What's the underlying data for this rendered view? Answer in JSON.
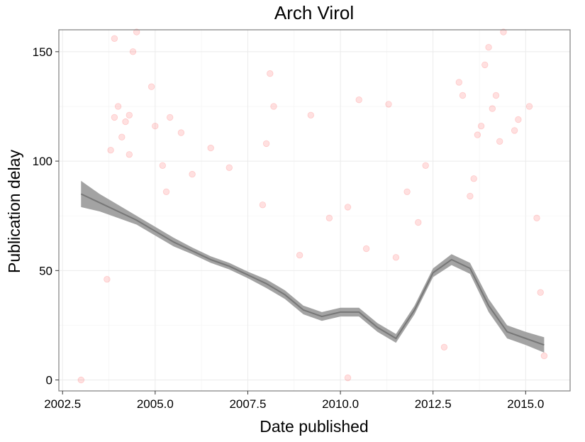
{
  "chart_data": {
    "type": "scatter",
    "title": "Arch Virol",
    "xlabel": "Date published",
    "ylabel": "Publication delay",
    "xlim": [
      2002.4,
      2016.2
    ],
    "ylim": [
      -5,
      160
    ],
    "x_ticks": [
      2002.5,
      2005.0,
      2007.5,
      2010.0,
      2012.5,
      2015.0
    ],
    "x_tick_labels": [
      "2002.5",
      "2005.0",
      "2007.5",
      "2010.0",
      "2012.5",
      "2015.0"
    ],
    "y_ticks": [
      0,
      50,
      100,
      150
    ],
    "y_tick_labels": [
      "0",
      "50",
      "100",
      "150"
    ],
    "grid": true,
    "point_color": "#ff0000",
    "point_opacity": 0.12,
    "smooth_color": "#777777",
    "series": [
      {
        "type": "scatter",
        "points": [
          [
            2003.0,
            0
          ],
          [
            2003.7,
            46
          ],
          [
            2003.8,
            105
          ],
          [
            2003.9,
            120
          ],
          [
            2003.9,
            156
          ],
          [
            2004.0,
            125
          ],
          [
            2004.1,
            111
          ],
          [
            2004.2,
            118
          ],
          [
            2004.3,
            121
          ],
          [
            2004.3,
            103
          ],
          [
            2004.4,
            150
          ],
          [
            2004.5,
            159
          ],
          [
            2004.9,
            134
          ],
          [
            2005.0,
            116
          ],
          [
            2005.2,
            98
          ],
          [
            2005.3,
            86
          ],
          [
            2005.4,
            120
          ],
          [
            2005.7,
            113
          ],
          [
            2006.0,
            94
          ],
          [
            2006.5,
            106
          ],
          [
            2007.0,
            97
          ],
          [
            2007.9,
            80
          ],
          [
            2008.0,
            108
          ],
          [
            2008.1,
            140
          ],
          [
            2008.2,
            125
          ],
          [
            2008.9,
            57
          ],
          [
            2009.2,
            121
          ],
          [
            2009.7,
            74
          ],
          [
            2010.2,
            79
          ],
          [
            2010.2,
            1
          ],
          [
            2010.5,
            128
          ],
          [
            2010.7,
            60
          ],
          [
            2011.3,
            126
          ],
          [
            2011.5,
            56
          ],
          [
            2011.8,
            86
          ],
          [
            2012.1,
            72
          ],
          [
            2012.3,
            98
          ],
          [
            2012.8,
            15
          ],
          [
            2013.2,
            136
          ],
          [
            2013.3,
            130
          ],
          [
            2013.5,
            84
          ],
          [
            2013.6,
            92
          ],
          [
            2013.7,
            112
          ],
          [
            2013.8,
            116
          ],
          [
            2013.9,
            144
          ],
          [
            2014.0,
            152
          ],
          [
            2014.1,
            124
          ],
          [
            2014.2,
            130
          ],
          [
            2014.3,
            109
          ],
          [
            2014.4,
            159
          ],
          [
            2014.7,
            114
          ],
          [
            2014.8,
            119
          ],
          [
            2015.1,
            125
          ],
          [
            2015.3,
            74
          ],
          [
            2015.4,
            40
          ],
          [
            2015.5,
            11
          ]
        ]
      },
      {
        "type": "smooth",
        "x": [
          2003.0,
          2003.5,
          2004.0,
          2004.5,
          2005.0,
          2005.5,
          2006.0,
          2006.5,
          2007.0,
          2007.5,
          2008.0,
          2008.5,
          2009.0,
          2009.5,
          2010.0,
          2010.5,
          2011.0,
          2011.5,
          2012.0,
          2012.5,
          2013.0,
          2013.5,
          2014.0,
          2014.5,
          2015.0,
          2015.5
        ],
        "y": [
          85,
          81,
          77,
          73,
          68,
          63,
          59,
          55,
          52,
          48,
          44,
          39,
          32,
          29,
          31,
          31,
          24,
          19,
          32,
          49,
          55,
          51,
          34,
          22,
          19,
          16
        ],
        "band_halfwidth": [
          6,
          4,
          3,
          2,
          2,
          2,
          1.5,
          1.5,
          1.5,
          1.5,
          2,
          2,
          2,
          2,
          2,
          2,
          2,
          2,
          2,
          2,
          2.5,
          2.5,
          3,
          3,
          3,
          3.5
        ]
      }
    ]
  }
}
